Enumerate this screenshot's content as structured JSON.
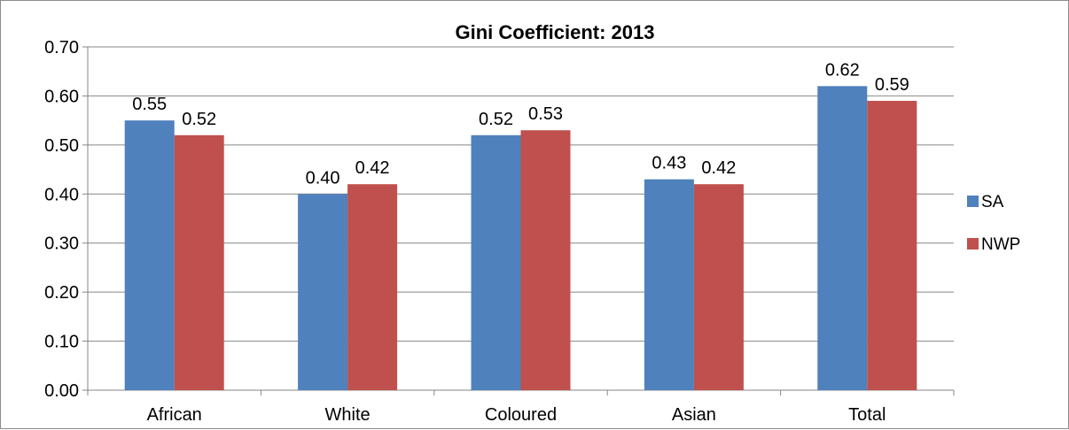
{
  "chart_data": {
    "type": "bar",
    "title": "Gini Coefficient: 2013",
    "xlabel": "",
    "ylabel": "",
    "categories": [
      "African",
      "White",
      "Coloured",
      "Asian",
      "Total"
    ],
    "series": [
      {
        "name": "SA",
        "color": "#4F81BD",
        "values": [
          0.55,
          0.4,
          0.52,
          0.43,
          0.62
        ],
        "labels": [
          "0.55",
          "0.40",
          "0.52",
          "0.43",
          "0.62"
        ]
      },
      {
        "name": "NWP",
        "color": "#C0504D",
        "values": [
          0.52,
          0.42,
          0.53,
          0.42,
          0.59
        ],
        "labels": [
          "0.52",
          "0.42",
          "0.53",
          "0.42",
          "0.59"
        ]
      }
    ],
    "ylim": [
      0,
      0.7
    ],
    "yticks": [
      "0.00",
      "0.10",
      "0.20",
      "0.30",
      "0.40",
      "0.50",
      "0.60",
      "0.70"
    ],
    "grid": true,
    "legend_position": "right"
  }
}
